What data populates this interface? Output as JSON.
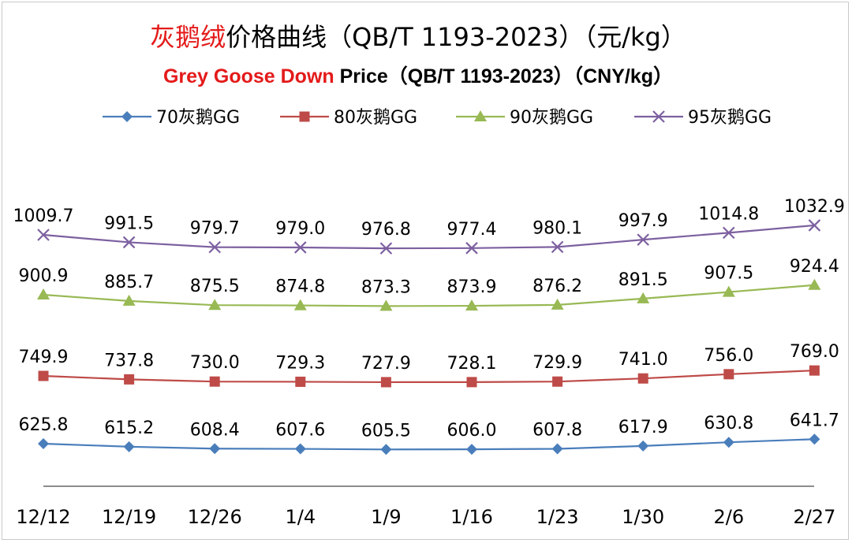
{
  "title_cn_red": "灰鹅绒",
  "title_cn_rest": "价格曲线（QB/T 1193-2023）（元/kg）",
  "title_en_red": "Grey Goose Down",
  "title_en_rest": " Price（QB/T 1193-2023）（CNY/kg）",
  "chart_data": {
    "type": "line",
    "categories": [
      "12/12",
      "12/19",
      "12/26",
      "1/4",
      "1/9",
      "1/16",
      "1/23",
      "1/30",
      "2/6",
      "2/27"
    ],
    "legend_position": "top",
    "grid": false,
    "series": [
      {
        "name": "70灰鹅GG",
        "color": "#4a7ebb",
        "marker": "diamond",
        "values": [
          625.8,
          615.2,
          608.4,
          607.6,
          605.5,
          606.0,
          607.8,
          617.9,
          630.8,
          641.7
        ],
        "labels": [
          "625.8",
          "615.2",
          "608.4",
          "607.6",
          "605.5",
          "606.0",
          "607.8",
          "617.9",
          "630.8",
          "641.7"
        ]
      },
      {
        "name": "80灰鹅GG",
        "color": "#be4b48",
        "marker": "square",
        "values": [
          749.9,
          737.8,
          730.0,
          729.3,
          727.9,
          728.1,
          729.9,
          741.0,
          756.0,
          769.0
        ],
        "labels": [
          "749.9",
          "737.8",
          "730.0",
          "729.3",
          "727.9",
          "728.1",
          "729.9",
          "741.0",
          "756.0",
          "769.0"
        ]
      },
      {
        "name": "90灰鹅GG",
        "color": "#98b954",
        "marker": "triangle",
        "values": [
          900.9,
          885.7,
          875.5,
          874.8,
          873.3,
          873.9,
          876.2,
          891.5,
          907.5,
          924.4
        ],
        "labels": [
          "900.9",
          "885.7",
          "875.5",
          "874.8",
          "873.3",
          "873.9",
          "876.2",
          "891.5",
          "907.5",
          "924.4"
        ]
      },
      {
        "name": "95灰鹅GG",
        "color": "#7d60a0",
        "marker": "x",
        "values": [
          1009.7,
          991.5,
          979.7,
          979.0,
          976.8,
          977.4,
          980.1,
          997.9,
          1014.8,
          1032.9
        ],
        "labels": [
          "1009.7",
          "991.5",
          "979.7",
          "979.0",
          "976.8",
          "977.4",
          "980.1",
          "997.9",
          "1014.8",
          "1032.9"
        ]
      }
    ]
  }
}
